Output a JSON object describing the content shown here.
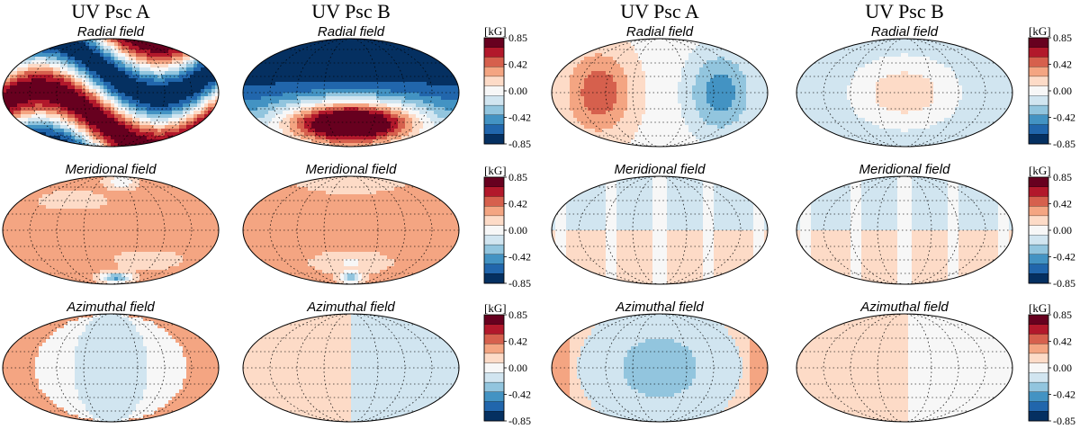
{
  "figure": {
    "columns": [
      {
        "title": "UV Psc A"
      },
      {
        "title": "UV Psc B"
      },
      {
        "title": "UV Psc A"
      },
      {
        "title": "UV Psc B"
      }
    ],
    "rows": [
      {
        "label": "Radial field"
      },
      {
        "label": "Meridional field"
      },
      {
        "label": "Azimuthal field"
      }
    ],
    "colorbar": {
      "unit": "[kG]",
      "ticks": [
        "0.85",
        "0.42",
        "0.00",
        "-0.42",
        "-0.85"
      ],
      "colors": [
        "#67001f",
        "#b2182b",
        "#d6604d",
        "#f4a582",
        "#fddbc7",
        "#f7f7f7",
        "#d1e5f0",
        "#92c5de",
        "#4393c3",
        "#2166ac",
        "#053061"
      ]
    },
    "maps": [
      [
        {
          "kind": "wave",
          "amp": 0.85,
          "sign": 1
        },
        {
          "kind": "blob",
          "amp": 0.85,
          "sign": 1
        },
        {
          "kind": "lobes",
          "amp": 0.34,
          "sign": 1
        },
        {
          "kind": "center",
          "amp": 0.3,
          "sign": 1
        }
      ],
      [
        {
          "kind": "merA",
          "amp": 0.4,
          "sign": -1
        },
        {
          "kind": "merB",
          "amp": 0.4,
          "sign": 1
        },
        {
          "kind": "half",
          "amp": 0.12,
          "sign": 1
        },
        {
          "kind": "half",
          "amp": 0.12,
          "sign": 1
        }
      ],
      [
        {
          "kind": "lens",
          "amp": 0.3,
          "sign": 1
        },
        {
          "kind": "split",
          "amp": 0.3,
          "sign": 1
        },
        {
          "kind": "centerneg",
          "amp": 0.3,
          "sign": 1
        },
        {
          "kind": "splitweak",
          "amp": 0.12,
          "sign": 1
        }
      ]
    ]
  }
}
